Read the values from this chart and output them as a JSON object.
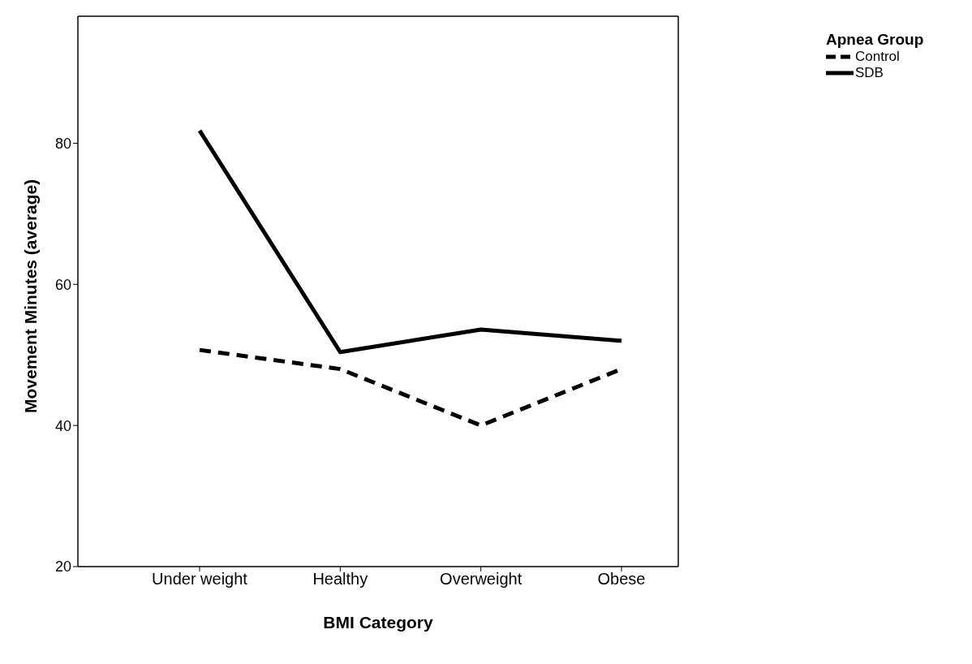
{
  "chart_data": {
    "type": "line",
    "xlabel": "BMI Category",
    "ylabel": "Movement Minutes (average)",
    "legend_title": "Apnea Group",
    "categories": [
      "Under weight",
      "Healthy",
      "Overweight",
      "Obese"
    ],
    "series": [
      {
        "name": "Control",
        "color": "#000000",
        "line_style": "dashed",
        "values": [
          50.7,
          48.0,
          40.0,
          48.0
        ]
      },
      {
        "name": "SDB",
        "color": "#000000",
        "line_style": "solid",
        "values": [
          81.8,
          50.4,
          53.6,
          52.0
        ]
      }
    ],
    "ylim": [
      20,
      98
    ],
    "yticks": [
      20,
      40,
      60,
      80
    ],
    "grid": false,
    "legend": "top right",
    "marker": "none"
  }
}
